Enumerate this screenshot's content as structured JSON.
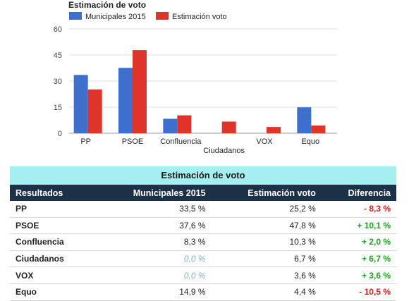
{
  "chart_data": {
    "type": "bar",
    "title": "Estimación de voto",
    "categories": [
      "PP",
      "PSOE",
      "Confluencia",
      "Ciudadanos",
      "VOX",
      "Equo"
    ],
    "series": [
      {
        "name": "Municipales 2015",
        "values": [
          33.5,
          37.6,
          8.3,
          0,
          0,
          14.9
        ],
        "color": "#3f6fcc"
      },
      {
        "name": "Estimación voto",
        "values": [
          25.2,
          47.8,
          10.3,
          6.7,
          3.6,
          4.4
        ],
        "color": "#e0332a"
      }
    ],
    "ylim": [
      0,
      60
    ],
    "yticks": [
      "0",
      "15",
      "30",
      "45",
      "60"
    ],
    "ytick_values": [
      0,
      15,
      30,
      45,
      60
    ],
    "grid": true,
    "legend": "top-left"
  },
  "table": {
    "caption": "Estimación de voto",
    "headers": [
      "Resultados",
      "Municipales 2015",
      "Estimación voto",
      "Diferencia"
    ],
    "rows": [
      {
        "name": "PP",
        "m2015": "33,5 %",
        "est": "25,2 %",
        "diff": "- 8,3 %",
        "trend": "neg",
        "zero": false
      },
      {
        "name": "PSOE",
        "m2015": "37,6 %",
        "est": "47,8 %",
        "diff": "+ 10,1 %",
        "trend": "pos",
        "zero": false
      },
      {
        "name": "Confluencia",
        "m2015": "8,3 %",
        "est": "10,3 %",
        "diff": "+ 2,0 %",
        "trend": "pos",
        "zero": false
      },
      {
        "name": "Ciudadanos",
        "m2015": "0,0 %",
        "est": "6,7 %",
        "diff": "+ 6,7 %",
        "trend": "pos",
        "zero": true
      },
      {
        "name": "VOX",
        "m2015": "0,0 %",
        "est": "3,6 %",
        "diff": "+ 3,6 %",
        "trend": "pos",
        "zero": true
      },
      {
        "name": "Equo",
        "m2015": "14,9 %",
        "est": "4,4 %",
        "diff": "- 10,5 %",
        "trend": "neg",
        "zero": false
      }
    ]
  }
}
